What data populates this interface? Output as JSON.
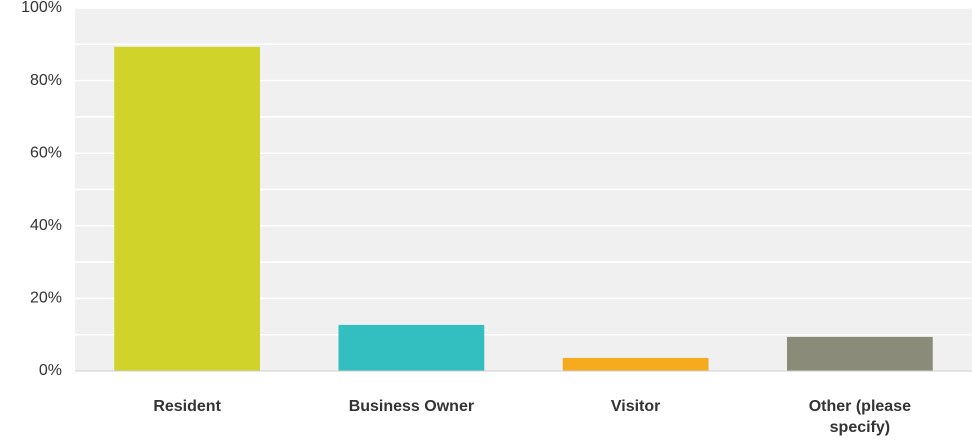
{
  "chart_data": {
    "type": "bar",
    "categories": [
      "Resident",
      "Business Owner",
      "Visitor",
      "Other (please specify)"
    ],
    "values": [
      89.3,
      12.7,
      3.6,
      9.4
    ],
    "colors": [
      "#d0d42a",
      "#33bfbf",
      "#f6ab1f",
      "#8b8b79"
    ],
    "ylim": [
      0,
      100
    ],
    "yticks": [
      {
        "value": 0,
        "label": "0%"
      },
      {
        "value": 20,
        "label": "20%"
      },
      {
        "value": 40,
        "label": "40%"
      },
      {
        "value": 60,
        "label": "60%"
      },
      {
        "value": 80,
        "label": "80%"
      },
      {
        "value": 100,
        "label": "100%"
      }
    ],
    "y_minor_ticks": [
      10,
      30,
      50,
      70,
      90
    ],
    "grid": true
  }
}
